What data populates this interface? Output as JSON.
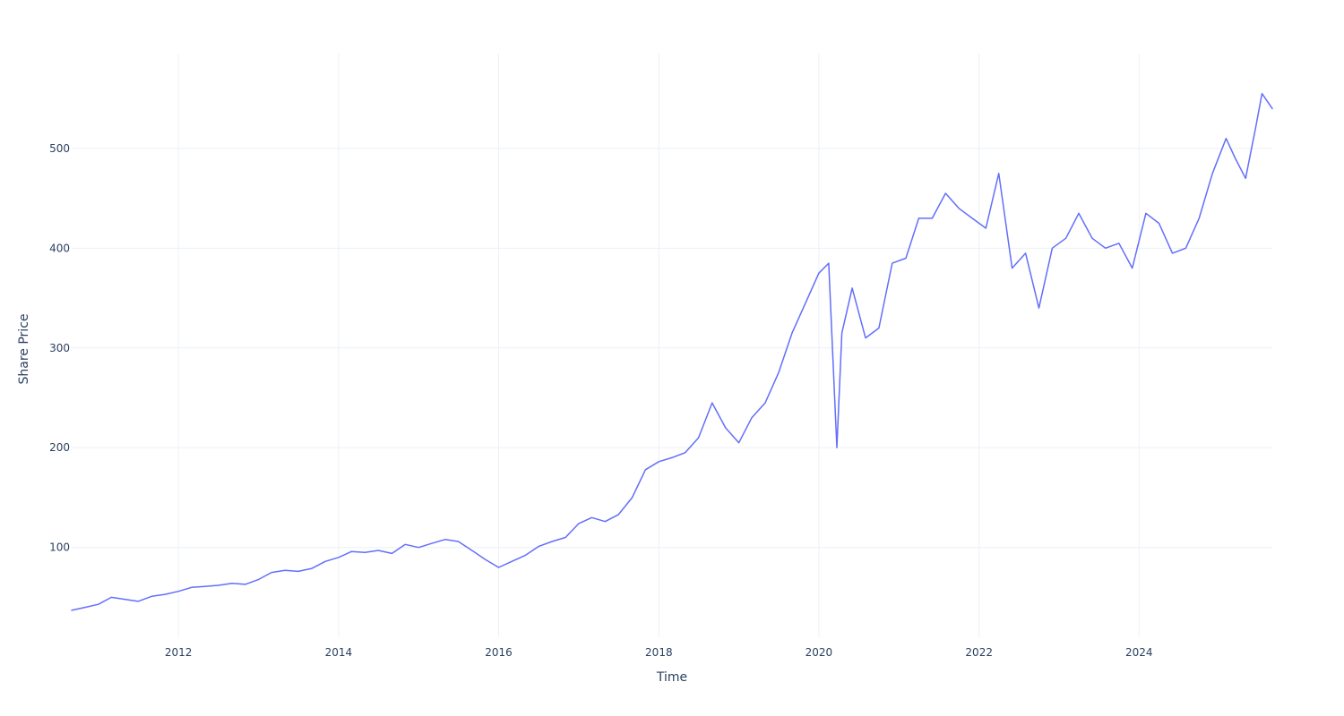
{
  "chart_data": {
    "type": "line",
    "title": "",
    "xlabel": "Time",
    "ylabel": "Share Price",
    "xlim": [
      "2010-09-01",
      "2025-08-31"
    ],
    "ylim": [
      10,
      595
    ],
    "x_ticks": [
      {
        "value": "2012-01-01",
        "label": "2012"
      },
      {
        "value": "2014-01-01",
        "label": "2014"
      },
      {
        "value": "2016-01-01",
        "label": "2016"
      },
      {
        "value": "2018-01-01",
        "label": "2018"
      },
      {
        "value": "2020-01-01",
        "label": "2020"
      },
      {
        "value": "2022-01-01",
        "label": "2022"
      },
      {
        "value": "2024-01-01",
        "label": "2024"
      }
    ],
    "y_ticks": [
      100,
      200,
      300,
      400,
      500
    ],
    "grid": true,
    "legend": "none",
    "series": [
      {
        "name": "",
        "color": "#636efa",
        "points": [
          [
            "2010-09-01",
            37
          ],
          [
            "2010-11-01",
            40
          ],
          [
            "2011-01-01",
            43
          ],
          [
            "2011-03-01",
            50
          ],
          [
            "2011-05-01",
            48
          ],
          [
            "2011-07-01",
            46
          ],
          [
            "2011-09-01",
            51
          ],
          [
            "2011-11-01",
            53
          ],
          [
            "2012-01-01",
            56
          ],
          [
            "2012-03-01",
            60
          ],
          [
            "2012-05-01",
            61
          ],
          [
            "2012-07-01",
            62
          ],
          [
            "2012-09-01",
            64
          ],
          [
            "2012-11-01",
            63
          ],
          [
            "2013-01-01",
            68
          ],
          [
            "2013-03-01",
            75
          ],
          [
            "2013-05-01",
            77
          ],
          [
            "2013-07-01",
            76
          ],
          [
            "2013-09-01",
            79
          ],
          [
            "2013-11-01",
            86
          ],
          [
            "2014-01-01",
            90
          ],
          [
            "2014-03-01",
            96
          ],
          [
            "2014-05-01",
            95
          ],
          [
            "2014-07-01",
            97
          ],
          [
            "2014-09-01",
            94
          ],
          [
            "2014-11-01",
            103
          ],
          [
            "2015-01-01",
            100
          ],
          [
            "2015-03-01",
            104
          ],
          [
            "2015-05-01",
            108
          ],
          [
            "2015-07-01",
            106
          ],
          [
            "2015-09-01",
            97
          ],
          [
            "2015-11-01",
            88
          ],
          [
            "2016-01-01",
            80
          ],
          [
            "2016-03-01",
            86
          ],
          [
            "2016-05-01",
            92
          ],
          [
            "2016-07-01",
            101
          ],
          [
            "2016-09-01",
            106
          ],
          [
            "2016-11-01",
            110
          ],
          [
            "2017-01-01",
            124
          ],
          [
            "2017-03-01",
            130
          ],
          [
            "2017-05-01",
            126
          ],
          [
            "2017-07-01",
            133
          ],
          [
            "2017-09-01",
            150
          ],
          [
            "2017-11-01",
            178
          ],
          [
            "2018-01-01",
            186
          ],
          [
            "2018-03-01",
            190
          ],
          [
            "2018-05-01",
            195
          ],
          [
            "2018-07-01",
            210
          ],
          [
            "2018-09-01",
            245
          ],
          [
            "2018-11-01",
            220
          ],
          [
            "2019-01-01",
            205
          ],
          [
            "2019-03-01",
            230
          ],
          [
            "2019-05-01",
            245
          ],
          [
            "2019-07-01",
            275
          ],
          [
            "2019-09-01",
            315
          ],
          [
            "2019-11-01",
            345
          ],
          [
            "2020-01-01",
            375
          ],
          [
            "2020-02-15",
            385
          ],
          [
            "2020-03-23",
            200
          ],
          [
            "2020-04-15",
            315
          ],
          [
            "2020-06-01",
            360
          ],
          [
            "2020-08-01",
            310
          ],
          [
            "2020-10-01",
            320
          ],
          [
            "2020-12-01",
            385
          ],
          [
            "2021-02-01",
            390
          ],
          [
            "2021-04-01",
            430
          ],
          [
            "2021-06-01",
            430
          ],
          [
            "2021-08-01",
            455
          ],
          [
            "2021-10-01",
            440
          ],
          [
            "2021-12-01",
            430
          ],
          [
            "2022-02-01",
            420
          ],
          [
            "2022-04-01",
            475
          ],
          [
            "2022-06-01",
            380
          ],
          [
            "2022-08-01",
            395
          ],
          [
            "2022-10-01",
            340
          ],
          [
            "2022-12-01",
            400
          ],
          [
            "2023-02-01",
            410
          ],
          [
            "2023-04-01",
            435
          ],
          [
            "2023-06-01",
            410
          ],
          [
            "2023-08-01",
            400
          ],
          [
            "2023-10-01",
            405
          ],
          [
            "2023-12-01",
            380
          ],
          [
            "2024-02-01",
            435
          ],
          [
            "2024-04-01",
            425
          ],
          [
            "2024-06-01",
            395
          ],
          [
            "2024-08-01",
            400
          ],
          [
            "2024-10-01",
            430
          ],
          [
            "2024-12-01",
            475
          ],
          [
            "2025-02-01",
            510
          ],
          [
            "2025-03-15",
            490
          ],
          [
            "2025-05-01",
            470
          ],
          [
            "2025-06-15",
            520
          ],
          [
            "2025-07-15",
            555
          ],
          [
            "2025-08-31",
            540
          ]
        ]
      }
    ]
  }
}
